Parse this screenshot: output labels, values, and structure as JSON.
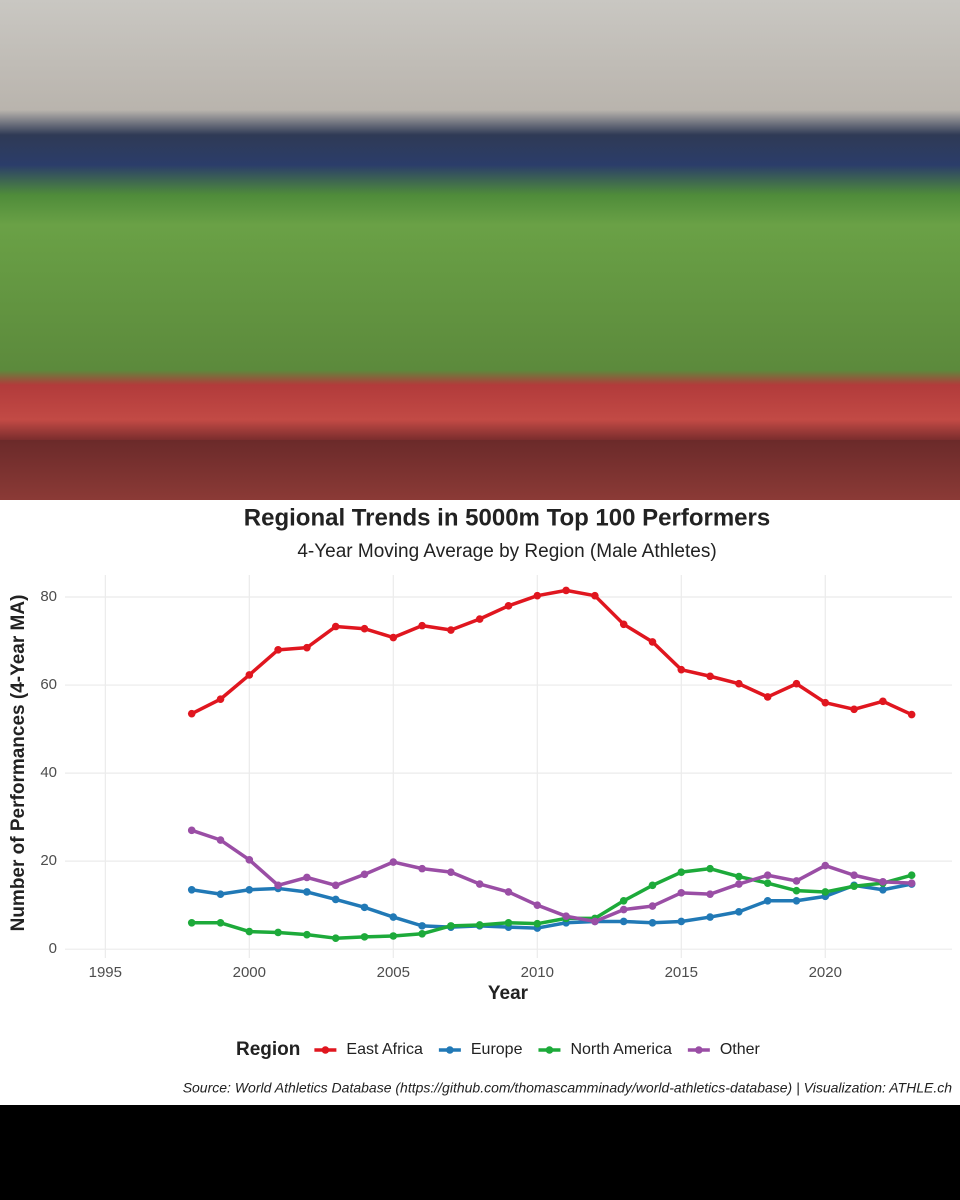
{
  "chart_data": {
    "type": "line",
    "title": "Regional Trends in 5000m Top 100 Performers",
    "subtitle": "4-Year Moving Average by Region (Male Athletes)",
    "x_label": "Year",
    "y_label": "Number of Performances (4-Year MA)",
    "legend_title": "Region",
    "source": "Source: World Athletics Database (https://github.com/thomascamminady/world-athletics-database) | Visualization: ATHLE.ch",
    "x": [
      1998,
      1999,
      2000,
      2001,
      2002,
      2003,
      2004,
      2005,
      2006,
      2007,
      2008,
      2009,
      2010,
      2011,
      2012,
      2013,
      2014,
      2015,
      2016,
      2017,
      2018,
      2019,
      2020,
      2021,
      2022,
      2023
    ],
    "series": [
      {
        "name": "East Africa",
        "color": "#e0161f",
        "values": [
          53.5,
          56.8,
          62.3,
          68.0,
          68.5,
          73.3,
          72.8,
          70.8,
          73.5,
          72.5,
          75.0,
          78.0,
          80.3,
          81.5,
          80.3,
          73.8,
          69.8,
          63.5,
          62.0,
          60.3,
          57.3,
          60.3,
          56.0,
          54.5,
          56.3,
          53.3
        ]
      },
      {
        "name": "Europe",
        "color": "#2179b6",
        "values": [
          13.5,
          12.5,
          13.5,
          13.8,
          13.0,
          11.3,
          9.5,
          7.3,
          5.3,
          5.0,
          5.3,
          5.0,
          4.8,
          6.0,
          6.3,
          6.3,
          6.0,
          6.3,
          7.3,
          8.5,
          11.0,
          11.0,
          12.0,
          14.5,
          13.5,
          14.8
        ]
      },
      {
        "name": "North America",
        "color": "#1daa3a",
        "values": [
          6.0,
          6.0,
          4.0,
          3.8,
          3.3,
          2.5,
          2.8,
          3.0,
          3.5,
          5.3,
          5.5,
          6.0,
          5.8,
          7.0,
          7.0,
          11.0,
          14.5,
          17.5,
          18.3,
          16.5,
          15.0,
          13.3,
          13.0,
          14.3,
          15.0,
          16.8
        ]
      },
      {
        "name": "Other",
        "color": "#9a4ea5",
        "values": [
          27.0,
          24.8,
          20.3,
          14.5,
          16.3,
          14.5,
          17.0,
          19.8,
          18.3,
          17.5,
          14.8,
          13.0,
          10.0,
          7.5,
          6.3,
          9.0,
          9.8,
          12.8,
          12.5,
          14.8,
          16.8,
          15.5,
          19.0,
          16.8,
          15.3,
          15.0
        ]
      }
    ],
    "xlim": [
      1993.6,
      2024.4
    ],
    "xticks": [
      1995,
      2000,
      2005,
      2010,
      2015,
      2020
    ],
    "ylim": [
      -2,
      85
    ],
    "yticks": [
      0,
      20,
      40,
      60,
      80
    ],
    "grid": true,
    "legend_position": "bottom"
  }
}
